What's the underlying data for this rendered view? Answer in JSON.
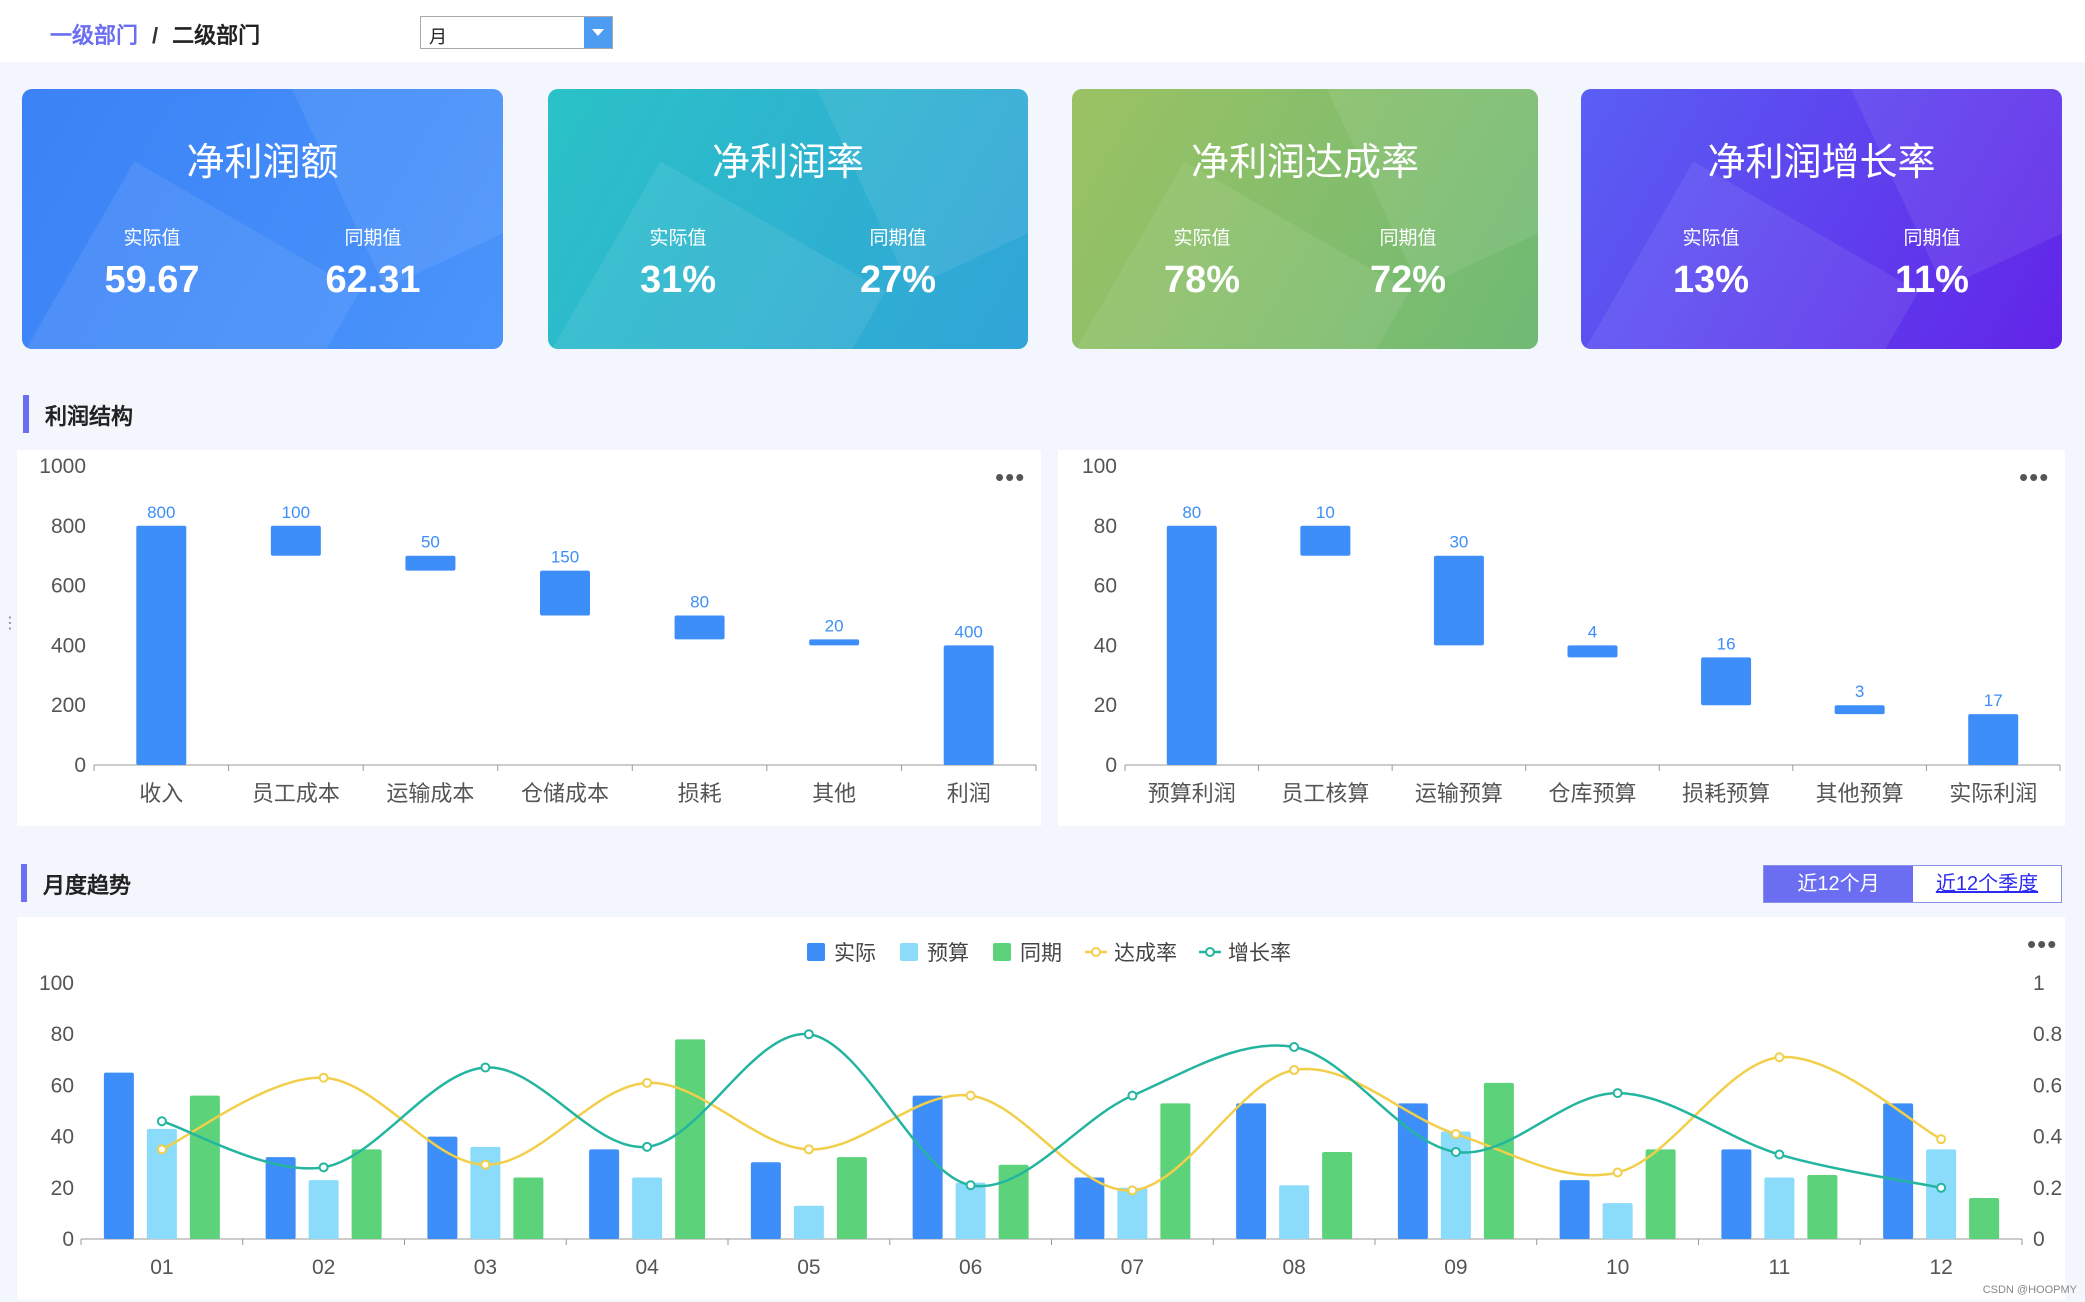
{
  "breadcrumb": {
    "level1": "一级部门",
    "separator": "/",
    "level2": "二级部门"
  },
  "period_select": {
    "value": "月"
  },
  "kpis": [
    {
      "title": "净利润额",
      "actual_label": "实际值",
      "actual_value": "59.67",
      "prior_label": "同期值",
      "prior_value": "62.31"
    },
    {
      "title": "净利润率",
      "actual_label": "实际值",
      "actual_value": "31%",
      "prior_label": "同期值",
      "prior_value": "27%"
    },
    {
      "title": "净利润达成率",
      "actual_label": "实际值",
      "actual_value": "78%",
      "prior_label": "同期值",
      "prior_value": "72%"
    },
    {
      "title": "净利润增长率",
      "actual_label": "实际值",
      "actual_value": "13%",
      "prior_label": "同期值",
      "prior_value": "11%"
    }
  ],
  "section_profit": {
    "title": "利润结构"
  },
  "section_trend": {
    "title": "月度趋势"
  },
  "trend_toggle": {
    "option1": "近12个月",
    "option2": "近12个季度"
  },
  "more_icon": "•••",
  "watermark": "CSDN @HOOPMY",
  "colors": {
    "accent": "#6b6ef0",
    "bar_blue": "#3d8ef8",
    "bar_light": "#8bdcfa",
    "bar_green": "#5cd27a",
    "line_yellow": "#f2cf4a",
    "line_teal": "#24b5a0"
  },
  "chart_data": [
    {
      "type": "bar",
      "subtype": "waterfall",
      "categories": [
        "收入",
        "员工成本",
        "运输成本",
        "仓储成本",
        "损耗",
        "其他",
        "利润"
      ],
      "values": [
        800,
        100,
        50,
        150,
        80,
        20,
        400
      ],
      "bar_ranges": [
        [
          0,
          800
        ],
        [
          700,
          800
        ],
        [
          650,
          700
        ],
        [
          500,
          650
        ],
        [
          420,
          500
        ],
        [
          400,
          420
        ],
        [
          0,
          400
        ]
      ],
      "ylim": [
        0,
        1000
      ],
      "yticks": [
        0,
        200,
        400,
        600,
        800,
        1000
      ],
      "grid": false
    },
    {
      "type": "bar",
      "subtype": "waterfall",
      "categories": [
        "预算利润",
        "员工核算",
        "运输预算",
        "仓库预算",
        "损耗预算",
        "其他预算",
        "实际利润"
      ],
      "values": [
        80,
        10,
        30,
        4,
        16,
        3,
        17
      ],
      "bar_ranges": [
        [
          0,
          80
        ],
        [
          70,
          80
        ],
        [
          40,
          70
        ],
        [
          36,
          40
        ],
        [
          20,
          36
        ],
        [
          17,
          20
        ],
        [
          0,
          17
        ]
      ],
      "ylim": [
        0,
        100
      ],
      "yticks": [
        0,
        20,
        40,
        60,
        80,
        100
      ],
      "grid": false
    },
    {
      "type": "bar",
      "categories": [
        "01",
        "02",
        "03",
        "04",
        "05",
        "06",
        "07",
        "08",
        "09",
        "10",
        "11",
        "12"
      ],
      "legend": {
        "position": "top-center"
      },
      "series": [
        {
          "name": "实际",
          "kind": "bar",
          "axis": "left",
          "values": [
            65,
            32,
            40,
            35,
            30,
            56,
            24,
            53,
            53,
            23,
            35,
            53
          ]
        },
        {
          "name": "预算",
          "kind": "bar",
          "axis": "left",
          "values": [
            43,
            23,
            36,
            24,
            13,
            22,
            20,
            21,
            42,
            14,
            24,
            35
          ]
        },
        {
          "name": "同期",
          "kind": "bar",
          "axis": "left",
          "values": [
            56,
            35,
            24,
            78,
            32,
            29,
            53,
            34,
            61,
            35,
            25,
            16
          ]
        },
        {
          "name": "达成率",
          "kind": "line",
          "axis": "right",
          "values": [
            0.35,
            0.63,
            0.29,
            0.61,
            0.35,
            0.56,
            0.19,
            0.66,
            0.41,
            0.26,
            0.71,
            0.39
          ]
        },
        {
          "name": "增长率",
          "kind": "line",
          "axis": "right",
          "values": [
            0.46,
            0.28,
            0.67,
            0.36,
            0.8,
            0.21,
            0.56,
            0.75,
            0.34,
            0.57,
            0.33,
            0.2
          ]
        }
      ],
      "ylim": [
        0,
        100
      ],
      "yticks": [
        0,
        20,
        40,
        60,
        80,
        100
      ],
      "y2lim": [
        0,
        1
      ],
      "y2ticks": [
        0,
        0.2,
        0.4,
        0.6,
        0.8,
        1
      ],
      "grid": false
    }
  ]
}
